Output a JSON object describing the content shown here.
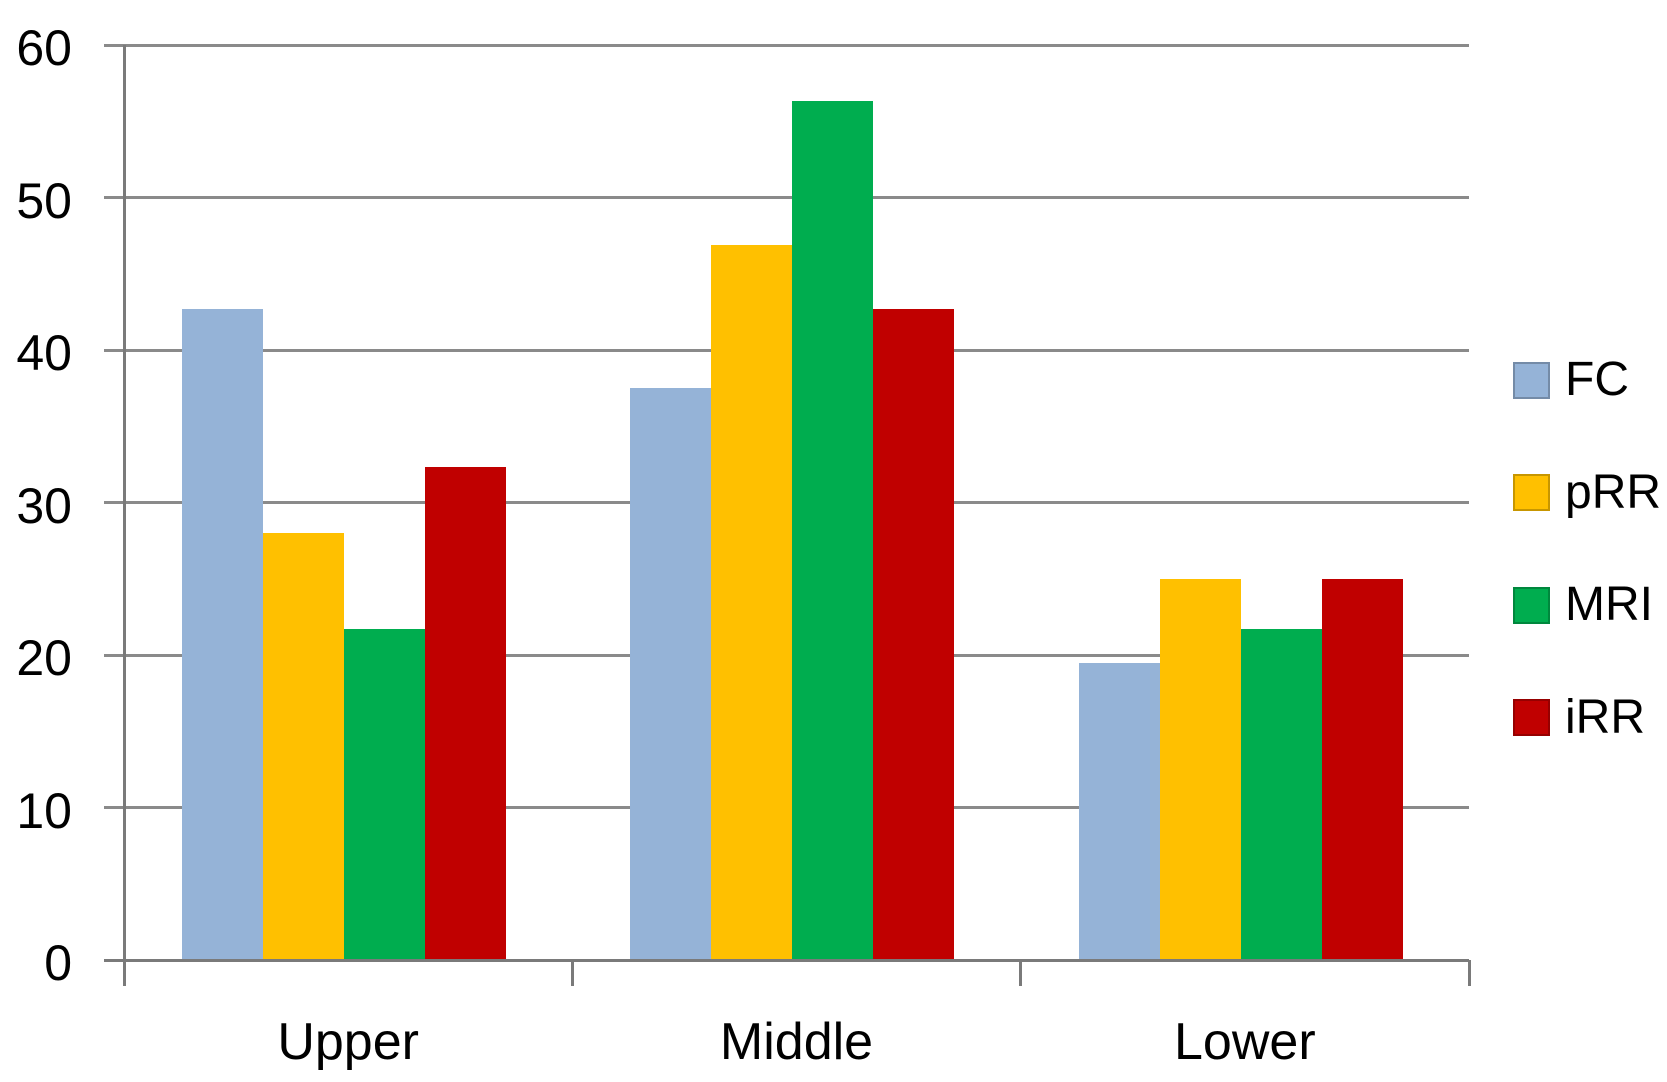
{
  "chart_data": {
    "type": "bar",
    "categories": [
      "Upper",
      "Middle",
      "Lower"
    ],
    "series": [
      {
        "name": "FC",
        "color": "#95B3D7",
        "values": [
          42.7,
          37.5,
          19.5
        ]
      },
      {
        "name": "pRR",
        "color": "#FFC000",
        "values": [
          28.0,
          46.9,
          25.0
        ]
      },
      {
        "name": "MRI",
        "color": "#00AD4F",
        "values": [
          21.7,
          56.3,
          21.7
        ]
      },
      {
        "name": "iRR",
        "color": "#C00000",
        "values": [
          32.3,
          42.7,
          25.0
        ]
      }
    ],
    "yticks": [
      0,
      10,
      20,
      30,
      40,
      50,
      60
    ],
    "ylim": [
      0,
      60
    ],
    "grid": true,
    "legend_position": "right"
  },
  "colors": {
    "gridline": "#8A8A8A",
    "axis": "#7A7A7A",
    "text": "#000000",
    "background": "#FFFFFF"
  }
}
